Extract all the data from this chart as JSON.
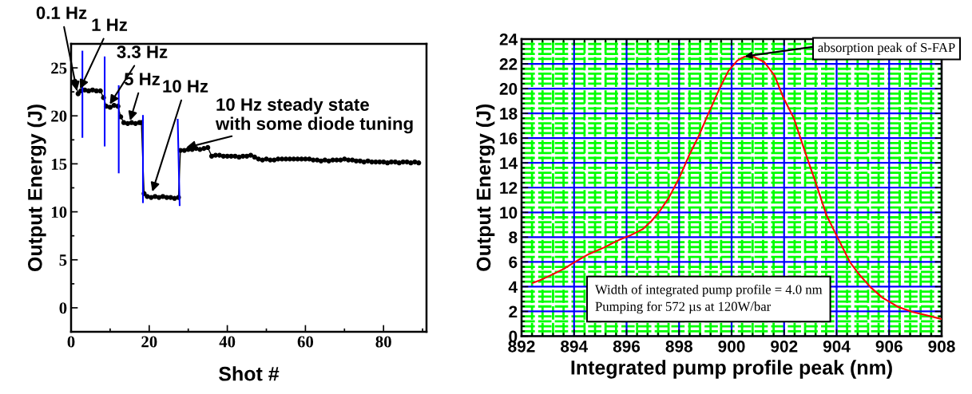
{
  "chart_data": [
    {
      "type": "line",
      "xlabel": "Shot #",
      "ylabel": "Output Energy (J)",
      "xlim": [
        0,
        91
      ],
      "ylim": [
        -2.5,
        27.5
      ],
      "xticks": [
        0,
        {
          "value": 10,
          "label": null
        },
        20,
        {
          "value": 30,
          "label": null
        },
        40,
        {
          "value": 50,
          "label": null
        },
        60,
        {
          "value": 70,
          "label": null
        },
        80,
        {
          "value": 90,
          "label": null
        }
      ],
      "yticks": [
        0,
        {
          "value": 2.5,
          "label": null
        },
        5,
        {
          "value": 7.5,
          "label": null
        },
        10,
        {
          "value": 12.5,
          "label": null
        },
        15,
        {
          "value": 17.5,
          "label": null
        },
        20,
        {
          "value": 22.5,
          "label": null
        },
        25
      ],
      "grid": false,
      "series": [
        {
          "color": "#000000",
          "marker": "circle",
          "x": [
            0.5,
            1,
            1.8,
            2.5,
            3.5,
            4.5,
            5.5,
            6.5,
            7.5,
            8.3,
            9,
            10,
            11,
            12,
            12.7,
            13.5,
            14.5,
            15.5,
            16.5,
            17.5,
            18,
            18.7,
            19.5,
            20.5,
            21.5,
            22.5,
            23.5,
            24.5,
            25.5,
            26.5,
            27.5,
            28,
            29,
            30,
            31,
            32,
            33,
            34,
            35,
            36,
            37,
            38,
            39,
            40,
            41,
            42,
            43,
            44,
            45,
            46,
            47,
            48,
            49,
            50,
            51,
            52,
            53,
            54,
            55,
            56,
            57,
            58,
            59,
            60,
            61,
            62,
            63,
            64,
            65,
            66,
            67,
            68,
            69,
            70,
            71,
            72,
            73,
            74,
            75,
            76,
            77,
            78,
            79,
            80,
            81,
            82,
            83,
            84,
            85,
            86,
            87,
            88,
            89
          ],
          "values": [
            23.5,
            23.6,
            22.3,
            22.6,
            22.7,
            22.6,
            22.7,
            22.6,
            22.6,
            21.9,
            21.0,
            20.9,
            21.1,
            21.0,
            19.9,
            19.3,
            19.2,
            19.3,
            19.2,
            19.3,
            19.3,
            11.9,
            11.6,
            11.5,
            11.6,
            11.5,
            11.6,
            11.5,
            11.5,
            11.4,
            11.5,
            16.4,
            16.4,
            16.5,
            16.5,
            16.6,
            16.5,
            16.6,
            16.7,
            15.8,
            15.9,
            15.9,
            15.8,
            15.8,
            15.8,
            15.8,
            15.7,
            15.8,
            15.8,
            15.9,
            15.7,
            15.5,
            15.4,
            15.5,
            15.4,
            15.4,
            15.5,
            15.5,
            15.5,
            15.5,
            15.5,
            15.5,
            15.5,
            15.5,
            15.5,
            15.4,
            15.4,
            15.3,
            15.4,
            15.3,
            15.4,
            15.4,
            15.4,
            15.5,
            15.4,
            15.4,
            15.3,
            15.3,
            15.2,
            15.3,
            15.2,
            15.2,
            15.2,
            15.2,
            15.1,
            15.2,
            15.2,
            15.1,
            15.2,
            15.2,
            15.1,
            15.2,
            15.1
          ]
        },
        {
          "color": "#0000ff",
          "marker": "none",
          "x": [
            2.9,
            2.9
          ],
          "values": [
            17.8,
            26.7
          ]
        },
        {
          "color": "#0000ff",
          "marker": "none",
          "x": [
            8.6,
            8.6
          ],
          "values": [
            16.9,
            26.1
          ]
        },
        {
          "color": "#0000ff",
          "marker": "none",
          "x": [
            12.2,
            12.2
          ],
          "values": [
            14.1,
            23.1
          ]
        },
        {
          "color": "#0000ff",
          "marker": "none",
          "x": [
            18.4,
            18.4
          ],
          "values": [
            11.0,
            20.0
          ]
        },
        {
          "color": "#0000ff",
          "marker": "none",
          "x": [
            27.3,
            27.8
          ],
          "values": [
            19.6,
            10.7
          ]
        }
      ],
      "annotations": [
        {
          "text": "0.1 Hz",
          "x": 1.5,
          "y": 22.6
        },
        {
          "text": "1 Hz",
          "x": 2.3,
          "y": 22.8
        },
        {
          "text": "3.3 Hz",
          "x": 9.9,
          "y": 21.2
        },
        {
          "text": "5 Hz",
          "x": 15.1,
          "y": 19.5
        },
        {
          "text": "10 Hz",
          "x": 20.8,
          "y": 12.1
        },
        {
          "text": "10 Hz steady state\nwith some diode tuning",
          "x": 29.5,
          "y": 16.7
        }
      ]
    },
    {
      "type": "line",
      "xlabel": "Integrated pump profile peak (nm)",
      "ylabel": "Output Energy (J)",
      "xlim": [
        892,
        908
      ],
      "ylim": [
        0,
        24
      ],
      "xticks": [
        892,
        {
          "value": 892.4,
          "label": null
        },
        {
          "value": 892.8,
          "label": null
        },
        {
          "value": 893.2,
          "label": null
        },
        {
          "value": 893.6,
          "label": null
        },
        894,
        {
          "value": 894.4,
          "label": null
        },
        {
          "value": 894.8,
          "label": null
        },
        {
          "value": 895.2,
          "label": null
        },
        {
          "value": 895.6,
          "label": null
        },
        896,
        {
          "value": 896.4,
          "label": null
        },
        {
          "value": 896.8,
          "label": null
        },
        {
          "value": 897.2,
          "label": null
        },
        {
          "value": 897.6,
          "label": null
        },
        898,
        {
          "value": 898.4,
          "label": null
        },
        {
          "value": 898.8,
          "label": null
        },
        {
          "value": 899.2,
          "label": null
        },
        {
          "value": 899.6,
          "label": null
        },
        900,
        {
          "value": 900.4,
          "label": null
        },
        {
          "value": 900.8,
          "label": null
        },
        {
          "value": 901.2,
          "label": null
        },
        {
          "value": 901.6,
          "label": null
        },
        902,
        {
          "value": 902.4,
          "label": null
        },
        {
          "value": 902.8,
          "label": null
        },
        {
          "value": 903.2,
          "label": null
        },
        {
          "value": 903.6,
          "label": null
        },
        904,
        {
          "value": 904.4,
          "label": null
        },
        {
          "value": 904.8,
          "label": null
        },
        {
          "value": 905.2,
          "label": null
        },
        {
          "value": 905.6,
          "label": null
        },
        906,
        {
          "value": 906.4,
          "label": null
        },
        {
          "value": 906.8,
          "label": null
        },
        {
          "value": 907.2,
          "label": null
        },
        {
          "value": 907.6,
          "label": null
        },
        908
      ],
      "yticks": [
        0,
        {
          "value": 0.4,
          "label": null
        },
        {
          "value": 0.8,
          "label": null
        },
        {
          "value": 1.2,
          "label": null
        },
        {
          "value": 1.6,
          "label": null
        },
        2,
        {
          "value": 2.4,
          "label": null
        },
        {
          "value": 2.8,
          "label": null
        },
        {
          "value": 3.2,
          "label": null
        },
        {
          "value": 3.6,
          "label": null
        },
        4,
        {
          "value": 4.4,
          "label": null
        },
        {
          "value": 4.8,
          "label": null
        },
        {
          "value": 5.2,
          "label": null
        },
        {
          "value": 5.6,
          "label": null
        },
        6,
        {
          "value": 6.4,
          "label": null
        },
        {
          "value": 6.8,
          "label": null
        },
        {
          "value": 7.2,
          "label": null
        },
        {
          "value": 7.6,
          "label": null
        },
        8,
        {
          "value": 8.4,
          "label": null
        },
        {
          "value": 8.8,
          "label": null
        },
        {
          "value": 9.2,
          "label": null
        },
        {
          "value": 9.6,
          "label": null
        },
        10,
        {
          "value": 10.4,
          "label": null
        },
        {
          "value": 10.8,
          "label": null
        },
        {
          "value": 11.2,
          "label": null
        },
        {
          "value": 11.6,
          "label": null
        },
        12,
        {
          "value": 12.4,
          "label": null
        },
        {
          "value": 12.8,
          "label": null
        },
        {
          "value": 13.2,
          "label": null
        },
        {
          "value": 13.6,
          "label": null
        },
        14,
        {
          "value": 14.4,
          "label": null
        },
        {
          "value": 14.8,
          "label": null
        },
        {
          "value": 15.2,
          "label": null
        },
        {
          "value": 15.6,
          "label": null
        },
        16,
        {
          "value": 16.4,
          "label": null
        },
        {
          "value": 16.8,
          "label": null
        },
        {
          "value": 17.2,
          "label": null
        },
        {
          "value": 17.6,
          "label": null
        },
        18,
        {
          "value": 18.4,
          "label": null
        },
        {
          "value": 18.8,
          "label": null
        },
        {
          "value": 19.2,
          "label": null
        },
        {
          "value": 19.6,
          "label": null
        },
        20,
        {
          "value": 20.4,
          "label": null
        },
        {
          "value": 20.8,
          "label": null
        },
        {
          "value": 21.2,
          "label": null
        },
        {
          "value": 21.6,
          "label": null
        },
        22,
        {
          "value": 22.4,
          "label": null
        },
        {
          "value": 22.8,
          "label": null
        },
        {
          "value": 23.2,
          "label": null
        },
        {
          "value": 23.6,
          "label": null
        },
        24
      ],
      "grid": true,
      "series": [
        {
          "color": "#ff0000",
          "marker": "none",
          "x": [
            892.43,
            892.77,
            893.16,
            893.61,
            894.01,
            894.57,
            895.14,
            895.7,
            896.16,
            896.61,
            896.95,
            897.28,
            897.62,
            898.02,
            898.36,
            898.75,
            899.09,
            899.54,
            899.88,
            900.22,
            900.5,
            900.84,
            901.24,
            901.63,
            901.97,
            902.37,
            902.82,
            903.21,
            903.61,
            904.06,
            904.51,
            904.85,
            905.3,
            905.75,
            906.32,
            906.88,
            907.45,
            907.98
          ],
          "values": [
            4.3,
            4.58,
            4.97,
            5.44,
            5.97,
            6.64,
            7.16,
            7.76,
            8.16,
            8.64,
            9.31,
            10.15,
            11.22,
            12.84,
            14.51,
            16.18,
            17.85,
            20.0,
            21.43,
            22.27,
            22.58,
            22.58,
            22.15,
            21.08,
            19.28,
            17.61,
            14.75,
            12.36,
            9.79,
            7.87,
            5.97,
            5.01,
            3.94,
            3.1,
            2.39,
            1.96,
            1.67,
            1.39
          ]
        }
      ],
      "annotations": [
        {
          "text": "absorption peak of S-FAP",
          "x": 900.5,
          "y": 22.6
        },
        "Width of integrated pump profile = 4.0 nm\nPumping for 572 µs at 120W/bar"
      ]
    }
  ]
}
